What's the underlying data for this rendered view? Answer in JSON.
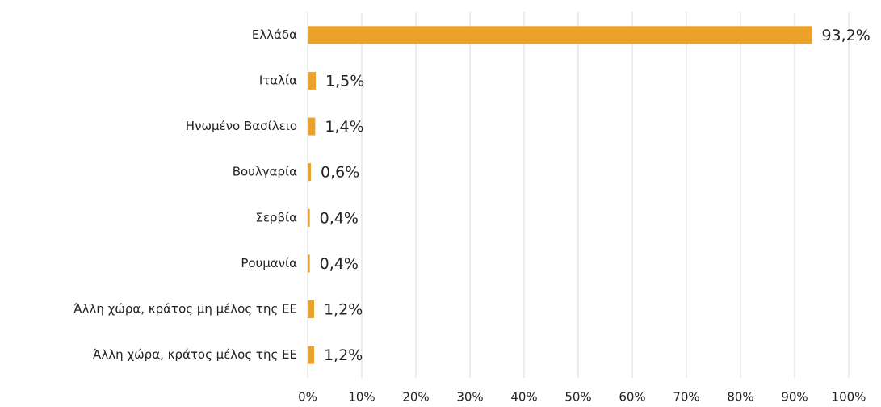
{
  "chart_data": {
    "type": "hbar",
    "categories": [
      "Ελλάδα",
      "Ιταλία",
      "Ηνωμένο Βασίλειο",
      "Βουλγαρία",
      "Σερβία",
      "Ρουμανία",
      "Άλλη χώρα, κράτος μη μέλος της ΕΕ",
      "Άλλη χώρα, κράτος μέλος της ΕΕ"
    ],
    "values": [
      93.2,
      1.5,
      1.4,
      0.6,
      0.4,
      0.4,
      1.2,
      1.2
    ],
    "value_labels": [
      "93,2%",
      "1,5%",
      "1,4%",
      "0,6%",
      "0,4%",
      "0,4%",
      "1,2%",
      "1,2%"
    ],
    "color": "#eba12a",
    "xlim": [
      0,
      100
    ],
    "xticks": [
      {
        "value": 0,
        "label": "0%"
      },
      {
        "value": 10,
        "label": "10%"
      },
      {
        "value": 20,
        "label": "20%"
      },
      {
        "value": 30,
        "label": "30%"
      },
      {
        "value": 40,
        "label": "40%"
      },
      {
        "value": 50,
        "label": "50%"
      },
      {
        "value": 60,
        "label": "60%"
      },
      {
        "value": 70,
        "label": "70%"
      },
      {
        "value": 80,
        "label": "80%"
      },
      {
        "value": 90,
        "label": "90%"
      },
      {
        "value": 100,
        "label": "100%"
      }
    ],
    "grid": true
  }
}
